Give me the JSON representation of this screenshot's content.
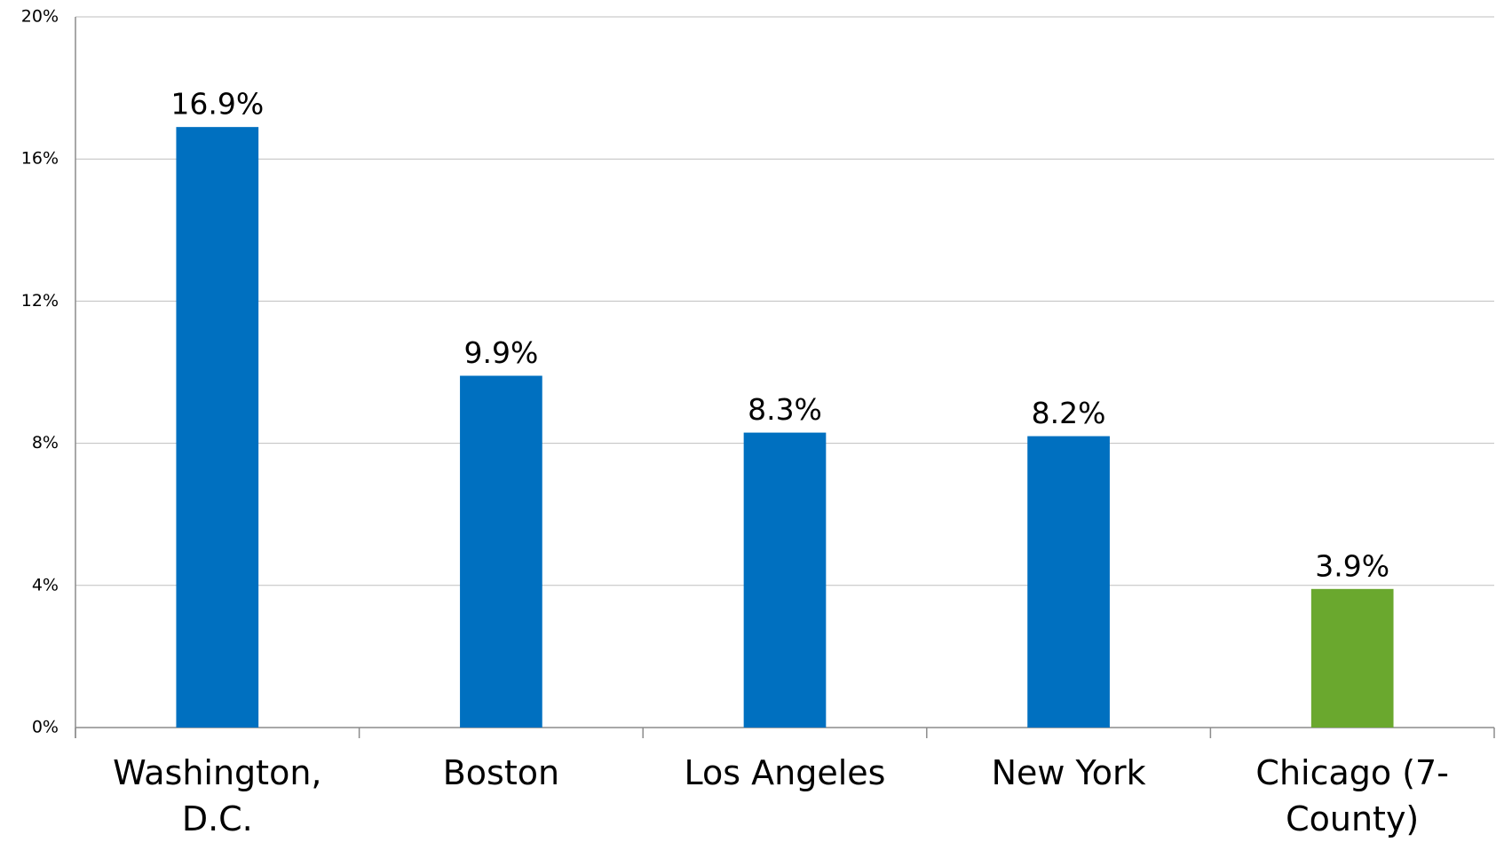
{
  "chart_data": {
    "type": "bar",
    "categories": [
      "Washington, D.C.",
      "Boston",
      "Los Angeles",
      "New York",
      "Chicago (7-County)"
    ],
    "values": [
      16.9,
      9.9,
      8.3,
      8.2,
      3.9
    ],
    "value_labels": [
      "16.9%",
      "9.9%",
      "8.3%",
      "8.2%",
      "3.9%"
    ],
    "colors": [
      "#0070c0",
      "#0070c0",
      "#0070c0",
      "#0070c0",
      "#6aa82e"
    ],
    "ylim": [
      0,
      20
    ],
    "yticks": [
      {
        "value": 0,
        "label": "0%"
      },
      {
        "value": 4,
        "label": "4%"
      },
      {
        "value": 8,
        "label": "8%"
      },
      {
        "value": 12,
        "label": "12%"
      },
      {
        "value": 16,
        "label": "16%"
      },
      {
        "value": 20,
        "label": "20%"
      }
    ],
    "grid": true
  }
}
